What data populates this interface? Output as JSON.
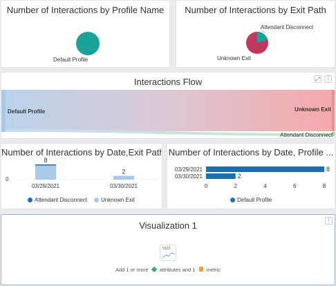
{
  "panels": {
    "p1": {
      "title": "Number of Interactions by Profile Name",
      "label": "Default Profile",
      "color": "#17a398"
    },
    "p2": {
      "title": "Number of Interactions by Exit Path",
      "label_top": "Attendant Disconnect",
      "label_bottom": "Unknown Exit",
      "slice_major_color": "#c2375d",
      "slice_minor_color": "#17a398"
    },
    "flow": {
      "title": "Interactions Flow",
      "source": "Default Profile",
      "target_major": "Unknown Exit",
      "target_minor": "Attendant Disconnect",
      "expand_icon": "expand-icon",
      "more_icon": "more-icon"
    },
    "p4": {
      "title": "Number of Interactions by Date,Exit Path",
      "y_tick": "0"
    },
    "p5": {
      "title": "Number of Interactions by Date, Profile ..."
    },
    "viz": {
      "title": "Visualization 1",
      "thumb_label": "5123",
      "hint_prefix": "Add 1 or more",
      "hint_attr": "attributes and 1",
      "hint_metric": "metric",
      "more_icon": "more-icon"
    }
  },
  "chart_data": [
    {
      "type": "pie",
      "title": "Number of Interactions by Profile Name",
      "slices": [
        {
          "label": "Default Profile",
          "value": 10
        }
      ]
    },
    {
      "type": "pie",
      "title": "Number of Interactions by Exit Path",
      "slices": [
        {
          "label": "Unknown Exit",
          "value": 8
        },
        {
          "label": "Attendant Disconnect",
          "value": 2
        }
      ]
    },
    {
      "type": "bar",
      "title": "Number of Interactions by Date,Exit Path",
      "categories": [
        "03/29/2021",
        "03/30/2021"
      ],
      "series": [
        {
          "name": "Attendant Disconnect",
          "values": [
            0,
            0
          ],
          "color": "#1c6fb0"
        },
        {
          "name": "Unknown Exit",
          "values": [
            8,
            2
          ],
          "color": "#a9c9e8"
        }
      ],
      "data_labels": [
        "8",
        "2"
      ],
      "legend": "bottom"
    },
    {
      "type": "bar",
      "orientation": "horizontal",
      "title": "Number of Interactions by Date, Profile ...",
      "categories": [
        "03/29/2021",
        "03/30/2021"
      ],
      "series": [
        {
          "name": "Default Profile",
          "values": [
            8,
            2
          ],
          "color": "#1c6fb0"
        }
      ],
      "data_labels": [
        "8",
        "2"
      ],
      "xticks": [
        "0",
        "2",
        "4",
        "6",
        "8"
      ],
      "xlim": [
        0,
        8
      ],
      "legend": "bottom"
    }
  ]
}
